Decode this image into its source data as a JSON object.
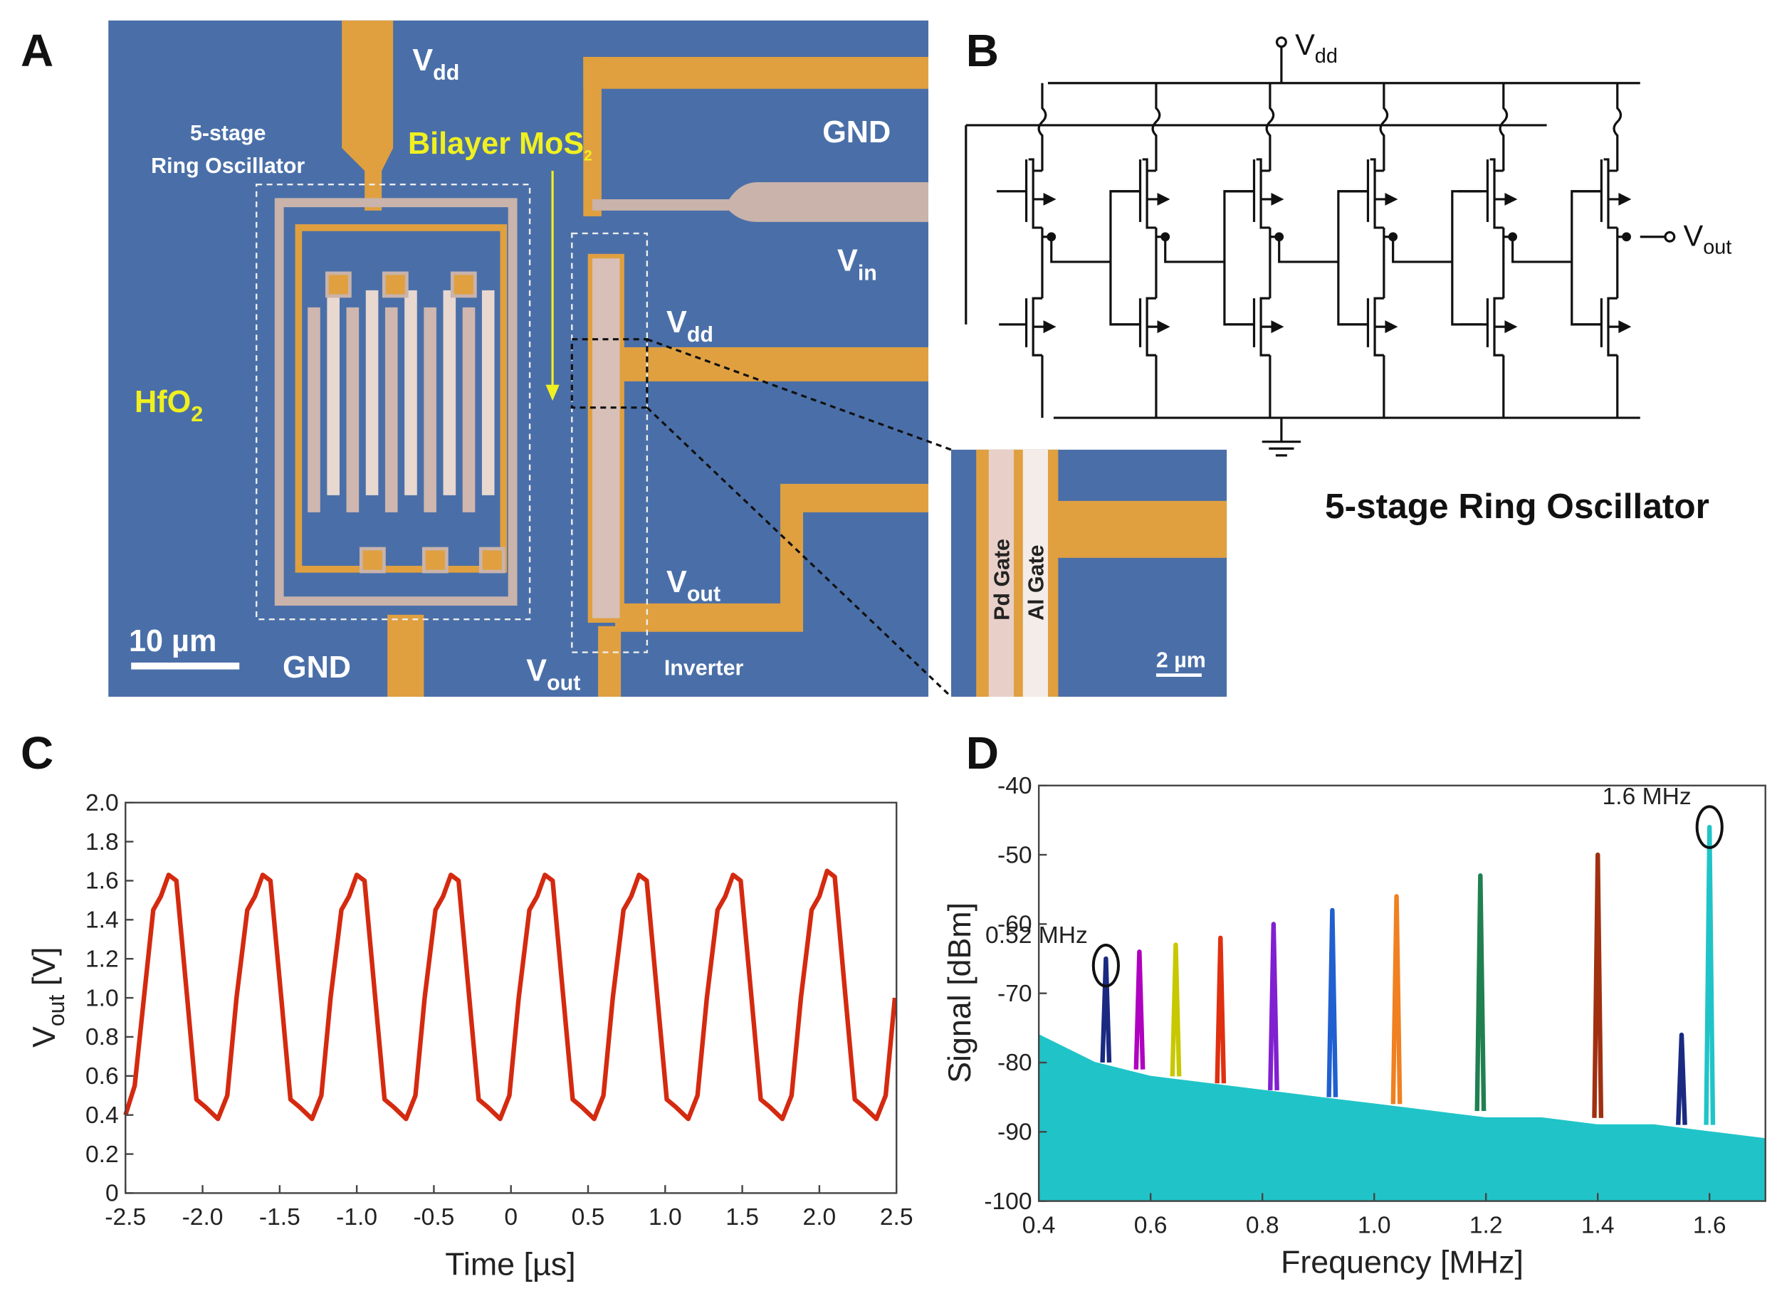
{
  "micrograph": {
    "panel": "A",
    "vdd_top": {
      "main": "V",
      "sub": "dd"
    },
    "title_line1": "5-stage",
    "title_line2": "Ring Oscillator",
    "mos2": {
      "main": "Bilayer MoS",
      "sub": "2"
    },
    "gnd_right": "GND",
    "vin": {
      "main": "V",
      "sub": "in"
    },
    "vdd_right": {
      "main": "V",
      "sub": "dd"
    },
    "hfo2": {
      "main": "HfO",
      "sub": "2"
    },
    "vout_right": {
      "main": "V",
      "sub": "out"
    },
    "scale": "10 µm",
    "gnd_bottom": "GND",
    "vout_bottom": {
      "main": "V",
      "sub": "out"
    },
    "inverter": "Inverter",
    "pd_gate": "Pd Gate",
    "al_gate": "Al Gate",
    "inset_scale": "2 µm"
  },
  "schematic": {
    "panel": "B",
    "vdd": {
      "main": "V",
      "sub": "dd"
    },
    "vout": {
      "main": "V",
      "sub": "out"
    },
    "caption": "5-stage Ring Oscillator"
  },
  "chart_data": [
    {
      "type": "line",
      "panel": "C",
      "color": "#d42a10",
      "xlabel": "Time [µs]",
      "ylabel": {
        "main": "V",
        "sub": "out",
        "unit": " [V]"
      },
      "xlim": [
        -2.5,
        2.5
      ],
      "ylim": [
        0,
        2.0
      ],
      "xticks": [
        -2.5,
        {
          "value": -2.0,
          "label": "-2.0"
        },
        -1.5,
        {
          "value": -1.0,
          "label": "-1.0"
        },
        -0.5,
        0,
        0.5,
        {
          "value": 1.0,
          "label": "1.0"
        },
        1.5,
        {
          "value": 2.0,
          "label": "2.0"
        },
        2.5
      ],
      "yticks": [
        0,
        0.2,
        0.4,
        0.6,
        0.8,
        {
          "value": 1.0,
          "label": "1.0"
        },
        1.2,
        1.4,
        1.6,
        1.8,
        {
          "value": 2.0,
          "label": "2.0"
        }
      ],
      "x": [
        -2.5,
        -2.44,
        -2.38,
        -2.32,
        -2.27,
        -2.22,
        -2.17,
        -2.1,
        -2.04,
        -1.98,
        -1.9,
        -1.84,
        -1.78,
        -1.71,
        -1.66,
        -1.61,
        -1.56,
        -1.49,
        -1.43,
        -1.37,
        -1.29,
        -1.23,
        -1.17,
        -1.1,
        -1.05,
        -1.0,
        -0.95,
        -0.88,
        -0.82,
        -0.76,
        -0.68,
        -0.62,
        -0.56,
        -0.49,
        -0.44,
        -0.39,
        -0.34,
        -0.27,
        -0.21,
        -0.15,
        -0.07,
        -0.01,
        0.05,
        0.12,
        0.17,
        0.22,
        0.27,
        0.34,
        0.4,
        0.46,
        0.54,
        0.6,
        0.66,
        0.73,
        0.78,
        0.83,
        0.88,
        0.95,
        1.01,
        1.07,
        1.15,
        1.21,
        1.27,
        1.34,
        1.39,
        1.44,
        1.49,
        1.56,
        1.62,
        1.68,
        1.76,
        1.82,
        1.88,
        1.95,
        2.0,
        2.05,
        2.1,
        2.17,
        2.23,
        2.29,
        2.37,
        2.43,
        2.49
      ],
      "values": [
        0.4,
        0.55,
        1.0,
        1.45,
        1.52,
        1.63,
        1.6,
        1.0,
        0.48,
        0.44,
        0.38,
        0.5,
        1.0,
        1.45,
        1.52,
        1.63,
        1.6,
        1.0,
        0.48,
        0.44,
        0.38,
        0.5,
        1.0,
        1.45,
        1.52,
        1.63,
        1.6,
        1.0,
        0.48,
        0.44,
        0.38,
        0.5,
        1.0,
        1.45,
        1.52,
        1.63,
        1.6,
        1.0,
        0.48,
        0.44,
        0.38,
        0.5,
        1.0,
        1.45,
        1.52,
        1.63,
        1.6,
        1.0,
        0.48,
        0.44,
        0.38,
        0.5,
        1.0,
        1.45,
        1.52,
        1.63,
        1.6,
        1.0,
        0.48,
        0.44,
        0.38,
        0.5,
        1.0,
        1.45,
        1.52,
        1.63,
        1.6,
        1.0,
        0.48,
        0.44,
        0.38,
        0.5,
        1.0,
        1.45,
        1.52,
        1.65,
        1.62,
        1.0,
        0.48,
        0.44,
        0.38,
        0.5,
        1.0
      ]
    },
    {
      "type": "line",
      "panel": "D",
      "xlabel": "Frequency [MHz]",
      "ylabel": "Signal [dBm]",
      "xlim": [
        0.4,
        1.7
      ],
      "ylim": [
        -100,
        -40
      ],
      "xticks": [
        0.4,
        0.6,
        0.8,
        {
          "value": 1.0,
          "label": "1.0"
        },
        1.2,
        1.4,
        1.6
      ],
      "yticks": [
        -100,
        -90,
        -80,
        -70,
        -60,
        -50,
        -40
      ],
      "annotations": [
        {
          "text": "0.52 MHz",
          "x": 0.52,
          "y": -66
        },
        {
          "text": "1.6 MHz",
          "x": 1.6,
          "y": -46
        }
      ],
      "series": [
        {
          "color": "#20c4c8",
          "area": true,
          "x": [
            0.4,
            0.5,
            0.6,
            0.7,
            0.8,
            0.9,
            1.0,
            1.1,
            1.2,
            1.3,
            1.4,
            1.5,
            1.6,
            1.7
          ],
          "values": [
            -76,
            -80,
            -82,
            -83,
            -84,
            -85,
            -86,
            -87,
            -88,
            -88,
            -89,
            -89,
            -90,
            -91
          ]
        },
        {
          "color": "#1a2a80",
          "x": [
            0.514,
            0.52,
            0.526
          ],
          "values": [
            -80,
            -65,
            -80
          ]
        },
        {
          "color": "#b000c0",
          "x": [
            0.574,
            0.58,
            0.586
          ],
          "values": [
            -81,
            -64,
            -81
          ]
        },
        {
          "color": "#c8c800",
          "x": [
            0.639,
            0.645,
            0.651
          ],
          "values": [
            -82,
            -63,
            -82
          ]
        },
        {
          "color": "#e03010",
          "x": [
            0.719,
            0.725,
            0.731
          ],
          "values": [
            -83,
            -62,
            -83
          ]
        },
        {
          "color": "#8020d0",
          "x": [
            0.814,
            0.82,
            0.826
          ],
          "values": [
            -84,
            -60,
            -84
          ]
        },
        {
          "color": "#2060d0",
          "x": [
            0.919,
            0.925,
            0.931
          ],
          "values": [
            -85,
            -58,
            -85
          ]
        },
        {
          "color": "#f08020",
          "x": [
            1.034,
            1.04,
            1.046
          ],
          "values": [
            -86,
            -56,
            -86
          ]
        },
        {
          "color": "#208050",
          "x": [
            1.184,
            1.19,
            1.196
          ],
          "values": [
            -87,
            -53,
            -87
          ]
        },
        {
          "color": "#a03010",
          "x": [
            1.394,
            1.4,
            1.406
          ],
          "values": [
            -88,
            -50,
            -88
          ]
        },
        {
          "color": "#1a2a80",
          "x": [
            1.544,
            1.55,
            1.556
          ],
          "values": [
            -89,
            -76,
            -89
          ]
        },
        {
          "color": "#20c4c8",
          "x": [
            1.594,
            1.6,
            1.606
          ],
          "values": [
            -89,
            -46,
            -89
          ]
        }
      ]
    }
  ]
}
